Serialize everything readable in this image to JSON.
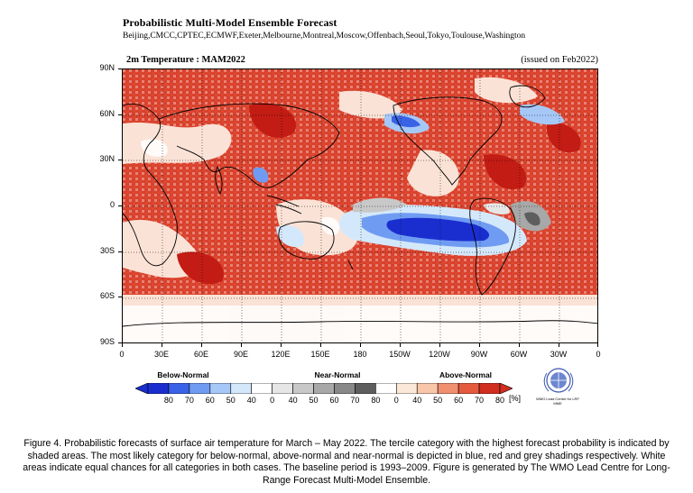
{
  "header": {
    "title": "Probabilistic Multi-Model Ensemble Forecast",
    "centres": "Beijing,CMCC,CPTEC,ECMWF,Exeter,Melbourne,Montreal,Moscow,Offenbach,Seoul,Tokyo,Toulouse,Washington"
  },
  "map": {
    "title": "2m Temperature : MAM2022",
    "issued": "(issued on Feb2022)",
    "lat_labels": [
      "90N",
      "60N",
      "30N",
      "0",
      "30S",
      "60S",
      "90S"
    ],
    "lon_labels": [
      "0",
      "30E",
      "60E",
      "90E",
      "120E",
      "150E",
      "180",
      "150W",
      "120W",
      "90W",
      "60W",
      "30W",
      "0"
    ]
  },
  "legend": {
    "groups": [
      "Below-Normal",
      "Near-Normal",
      "Above-Normal"
    ],
    "labels": [
      "80",
      "70",
      "60",
      "50",
      "40",
      "0",
      "40",
      "50",
      "60",
      "70",
      "80",
      "0",
      "40",
      "50",
      "60",
      "70",
      "80"
    ],
    "unit": "[%]",
    "colors": {
      "below": [
        "#1a2ed0",
        "#3a62e6",
        "#6f9cf2",
        "#a6c8f7",
        "#d4e8fb"
      ],
      "near": [
        "#ffffff",
        "#e6e6e6",
        "#c8c8c8",
        "#a8a8a8",
        "#888888",
        "#5e5e5e"
      ],
      "above": [
        "#ffffff",
        "#fce8d8",
        "#f8c6a8",
        "#f09070",
        "#e45a3e",
        "#d12e20"
      ]
    }
  },
  "logo": {
    "text": "WMO Lead Centre for LRF MME"
  },
  "caption": "Figure 4. Probabilistic forecasts of surface air temperature for March – May 2022.  The tercile category with the highest forecast probability is indicated by shaded areas. The most likely category for below-normal, above-normal and near-normal is depicted in blue, red and grey shadings respectively. White areas indicate equal chances for all categories in both cases.  The baseline period is 1993–2009. Figure is generated by The WMO Lead Centre for Long-Range Forecast Multi-Model Ensemble."
}
